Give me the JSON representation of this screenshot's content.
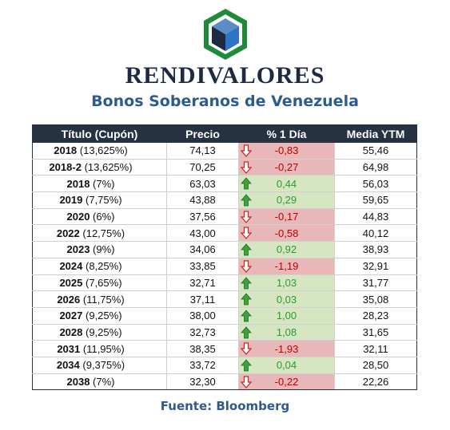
{
  "brand": "RENDIVALORES",
  "subtitle": "Bonos Soberanos de Venezuela",
  "table": {
    "headers": [
      "Título (Cupón)",
      "Precio",
      "% 1 Día",
      "Media YTM"
    ],
    "rows": [
      {
        "year": "2018",
        "coupon": "(13,625%)",
        "price": "74,13",
        "change": "-0,83",
        "direction": "down",
        "ytm": "55,46"
      },
      {
        "year": "2018-2",
        "coupon": "(13,625%)",
        "price": "70,25",
        "change": "-0,27",
        "direction": "down",
        "ytm": "64,98"
      },
      {
        "year": "2018",
        "coupon": "(7%)",
        "price": "63,03",
        "change": "0,44",
        "direction": "up",
        "ytm": "56,03"
      },
      {
        "year": "2019",
        "coupon": "(7,75%)",
        "price": "43,88",
        "change": "0,29",
        "direction": "up",
        "ytm": "59,65"
      },
      {
        "year": "2020",
        "coupon": "(6%)",
        "price": "37,56",
        "change": "-0,17",
        "direction": "down",
        "ytm": "44,83"
      },
      {
        "year": "2022",
        "coupon": "(12,75%)",
        "price": "43,00",
        "change": "-0,58",
        "direction": "down",
        "ytm": "40,12"
      },
      {
        "year": "2023",
        "coupon": "(9%)",
        "price": "34,06",
        "change": "0,92",
        "direction": "up",
        "ytm": "38,93"
      },
      {
        "year": "2024",
        "coupon": "(8,25%)",
        "price": "33,85",
        "change": "-1,19",
        "direction": "down",
        "ytm": "32,91"
      },
      {
        "year": "2025",
        "coupon": "(7,65%)",
        "price": "32,71",
        "change": "1,03",
        "direction": "up",
        "ytm": "31,77"
      },
      {
        "year": "2026",
        "coupon": "(11,75%)",
        "price": "37,11",
        "change": "0,03",
        "direction": "up",
        "ytm": "35,08"
      },
      {
        "year": "2027",
        "coupon": "(9,25%)",
        "price": "38,00",
        "change": "1,00",
        "direction": "up",
        "ytm": "28,23"
      },
      {
        "year": "2028",
        "coupon": "(9,25%)",
        "price": "32,73",
        "change": "1,08",
        "direction": "up",
        "ytm": "31,65"
      },
      {
        "year": "2031",
        "coupon": "(11,95%)",
        "price": "38,35",
        "change": "-1,93",
        "direction": "down",
        "ytm": "32,11"
      },
      {
        "year": "2034",
        "coupon": "(9,375%)",
        "price": "33,72",
        "change": "0,04",
        "direction": "up",
        "ytm": "28,50"
      },
      {
        "year": "2038",
        "coupon": "(7%)",
        "price": "32,30",
        "change": "-0,22",
        "direction": "down",
        "ytm": "22,26"
      }
    ]
  },
  "source": "Fuente: Bloomberg",
  "colors": {
    "header_bg": "#263142",
    "negative_bg": "#e8b7b7",
    "positive_bg": "#d6e6c3",
    "negative_text": "#c00000",
    "positive_text": "#2e9b2e",
    "accent_blue": "#2e5b8f",
    "logo_green": "#1f8a3b"
  },
  "icons": {
    "logo": "hexagon-cube-logo",
    "up": "green-up-arrow-icon",
    "down": "red-down-arrow-icon"
  }
}
